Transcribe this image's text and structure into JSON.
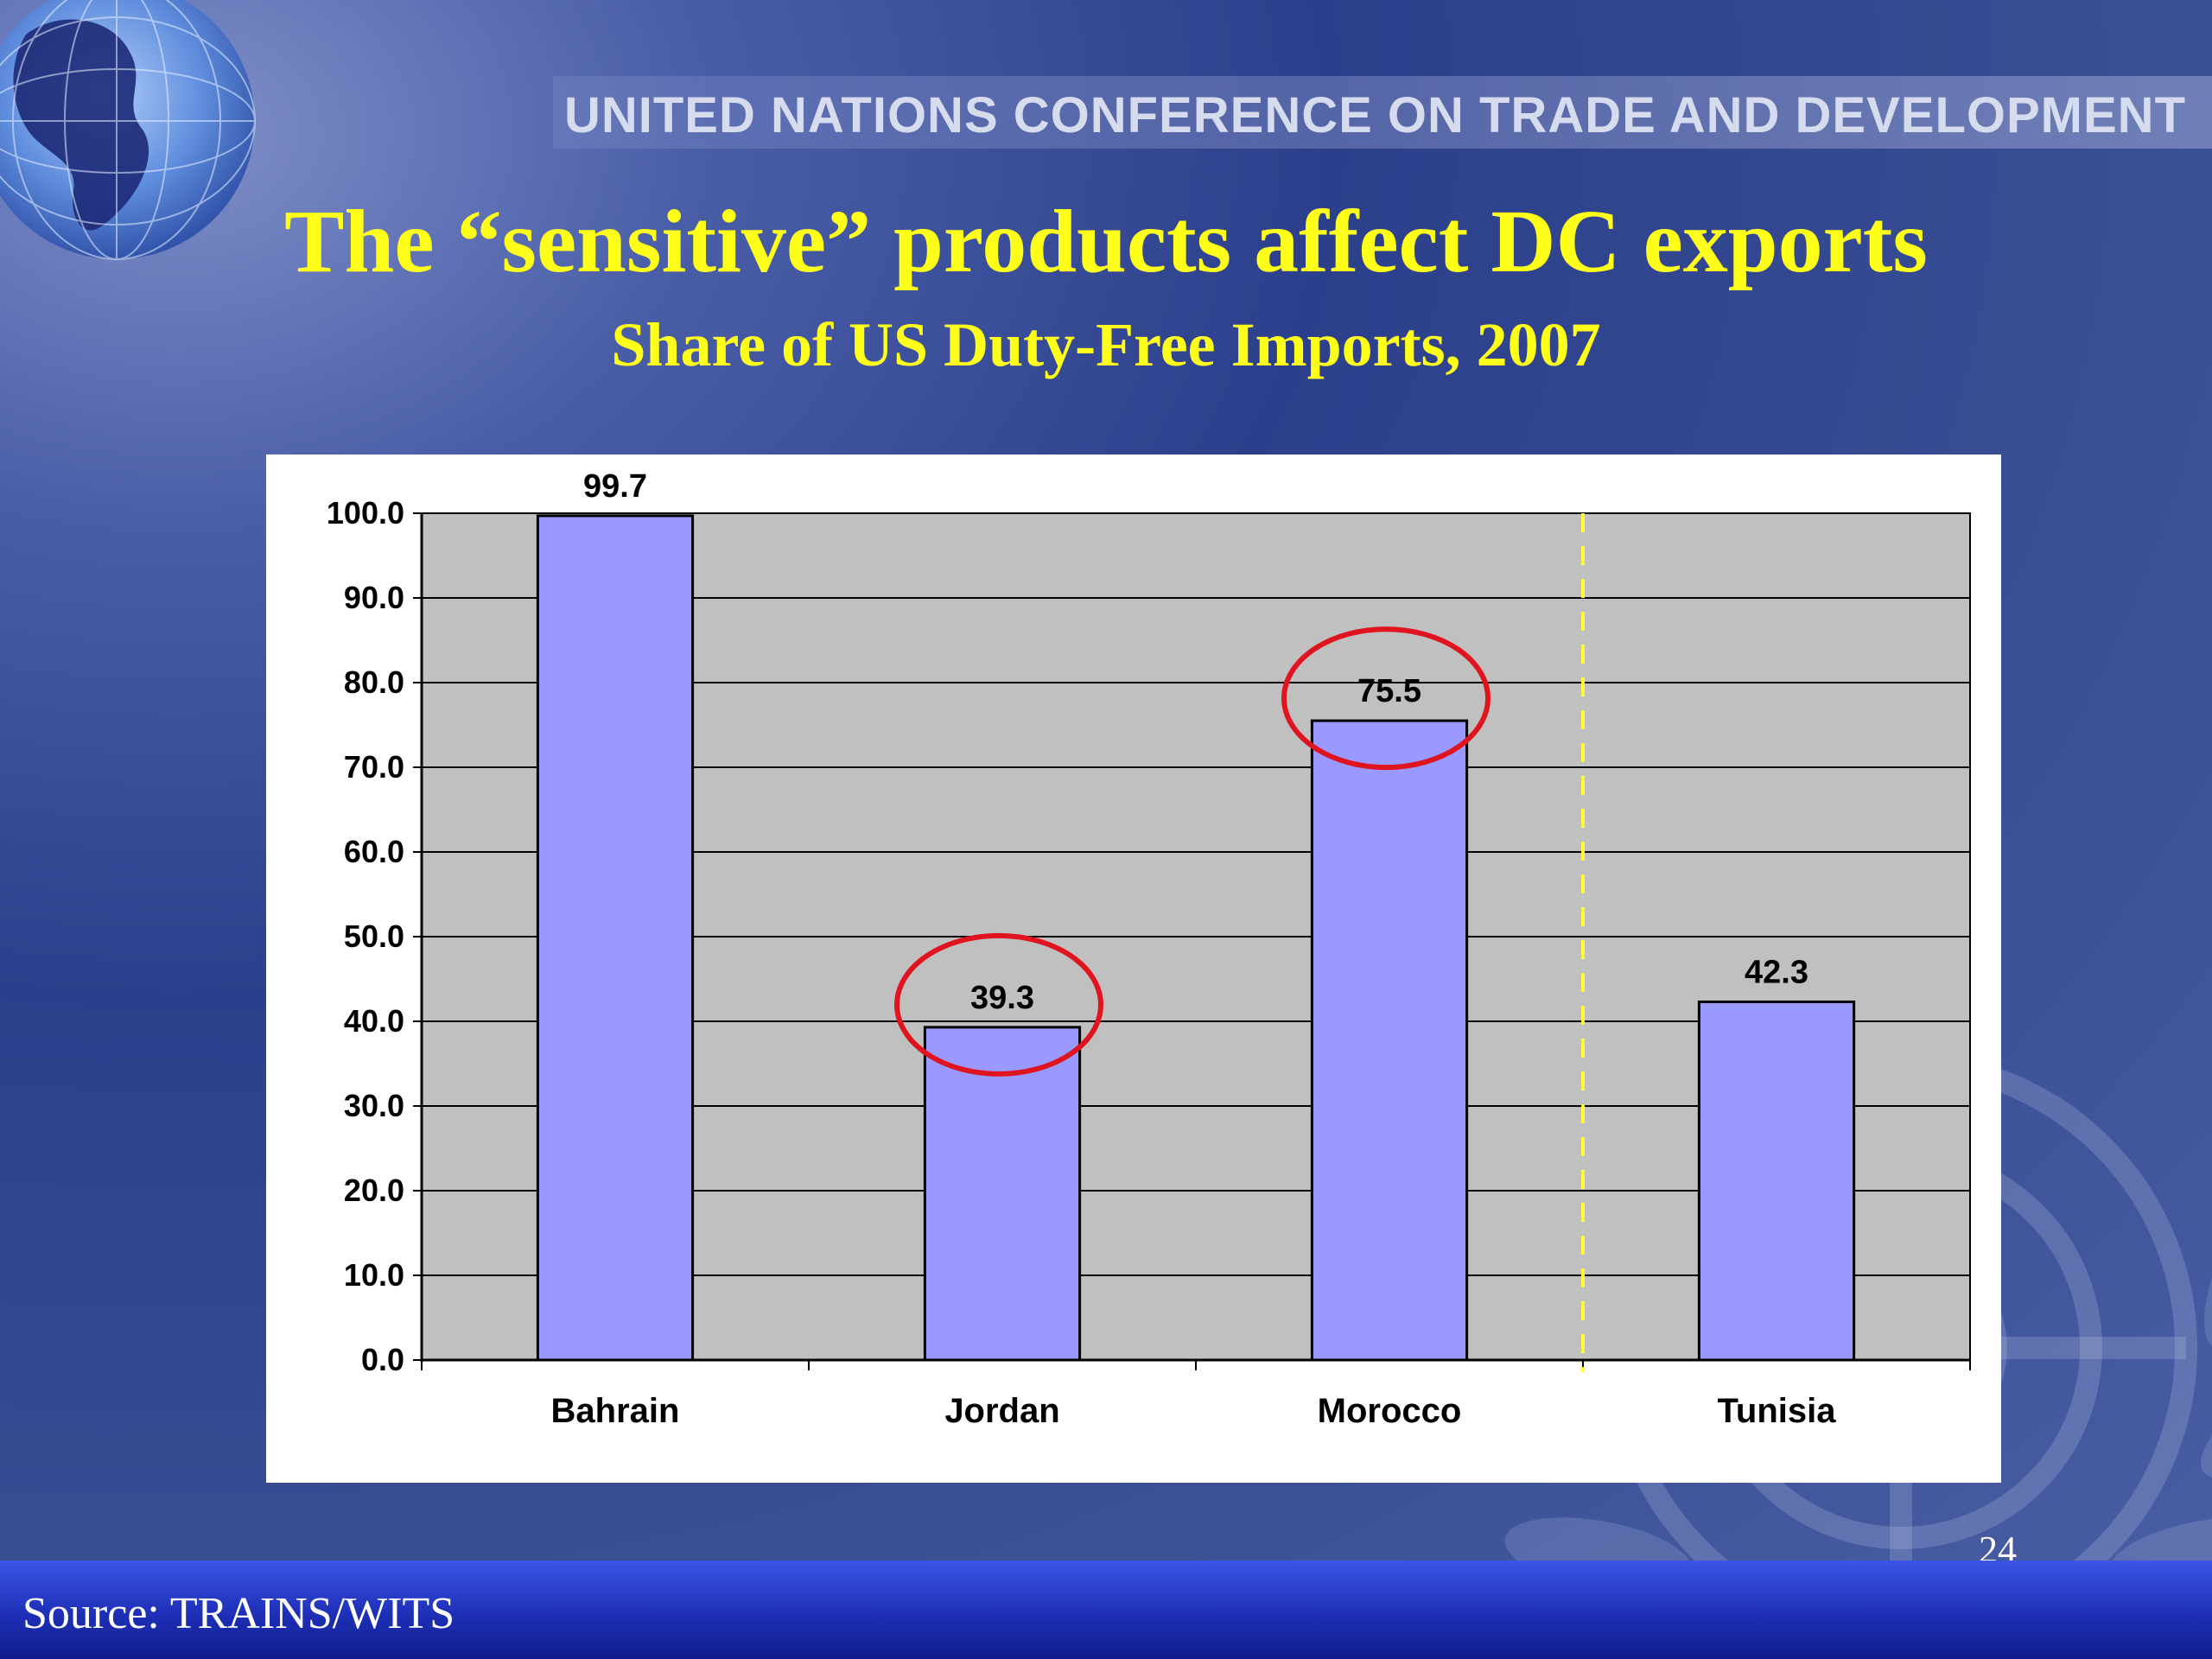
{
  "header": {
    "organization": "UNITED NATIONS CONFERENCE ON TRADE AND DEVELOPMENT",
    "title": "The “sensitive” products affect DC exports",
    "subtitle": "Share of  US Duty-Free Imports, 2007"
  },
  "footer": {
    "source": "Source: TRAINS/WITS",
    "page_number": "24"
  },
  "colors": {
    "title": "#ffff1a",
    "bar_fill": "#9999ff",
    "plot_background": "#c0c0c0",
    "highlight_circle": "#e0141e",
    "divider_line": "#ffff33"
  },
  "chart_data": {
    "type": "bar",
    "categories": [
      "Bahrain",
      "Jordan",
      "Morocco",
      "Tunisia"
    ],
    "values": [
      99.7,
      39.3,
      75.5,
      42.3
    ],
    "data_labels": [
      "99.7",
      "39.3",
      "75.5",
      "42.3"
    ],
    "ylim": [
      0,
      100
    ],
    "yticks": [
      0,
      10,
      20,
      30,
      40,
      50,
      60,
      70,
      80,
      90,
      100
    ],
    "ytick_labels": [
      "0.0",
      "10.0",
      "20.0",
      "30.0",
      "40.0",
      "50.0",
      "60.0",
      "70.0",
      "80.0",
      "90.0",
      "100.0"
    ],
    "grid": true,
    "highlighted_categories": [
      "Jordan",
      "Morocco"
    ],
    "dashed_divider_between": [
      "Morocco",
      "Tunisia"
    ],
    "legend": "none"
  }
}
